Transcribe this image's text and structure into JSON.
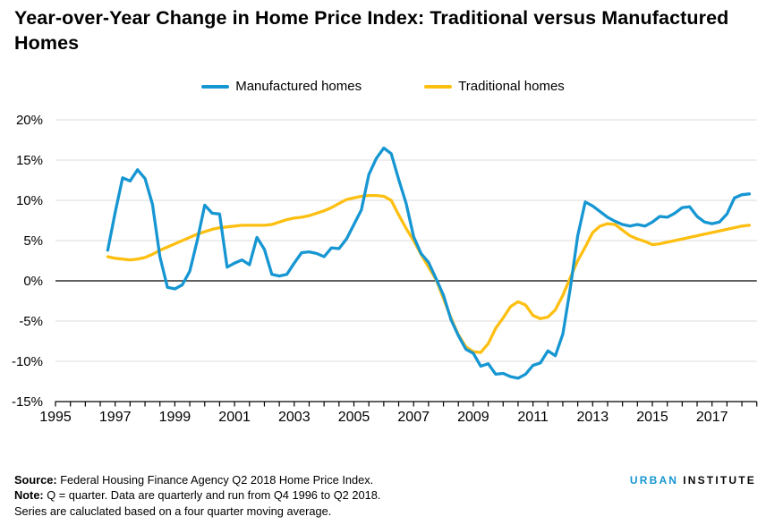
{
  "title": "Year-over-Year Change in Home Price Index: Traditional versus Manufactured Homes",
  "colors": {
    "background": "#ffffff",
    "manufactured_line": "#1696d2",
    "traditional_line": "#fdbf11",
    "gridline": "#dcdbdb",
    "zero_line": "#000000",
    "axis_line": "#000000",
    "text": "#000000"
  },
  "chart_data": {
    "type": "line",
    "title": "Year-over-Year Change in Home Price Index: Traditional versus Manufactured Homes",
    "xlabel": "",
    "ylabel": "",
    "grid": "horizontal",
    "legend_position": "top-center",
    "xlim": [
      1995,
      2018.5
    ],
    "ylim": [
      -15,
      20
    ],
    "x_start_year": 1996.75,
    "x_step_years": 0.25,
    "x_coverage": "Q4 1996 to Q2 2018, quarterly",
    "minor_x_tick_step": 0.5,
    "y_ticks": [
      {
        "label": "20%",
        "value": 20
      },
      {
        "label": "15%",
        "value": 15
      },
      {
        "label": "10%",
        "value": 10
      },
      {
        "label": "5%",
        "value": 5
      },
      {
        "label": "0%",
        "value": 0
      },
      {
        "label": "-5%",
        "value": -5
      },
      {
        "label": "-10%",
        "value": -10
      },
      {
        "label": "-15%",
        "value": -15
      }
    ],
    "x_ticks": [
      {
        "label": "1995",
        "year": 1995
      },
      {
        "label": "1997",
        "year": 1997
      },
      {
        "label": "1999",
        "year": 1999
      },
      {
        "label": "2001",
        "year": 2001
      },
      {
        "label": "2003",
        "year": 2003
      },
      {
        "label": "2005",
        "year": 2005
      },
      {
        "label": "2007",
        "year": 2007
      },
      {
        "label": "2009",
        "year": 2009
      },
      {
        "label": "2011",
        "year": 2011
      },
      {
        "label": "2013",
        "year": 2013
      },
      {
        "label": "2015",
        "year": 2015
      },
      {
        "label": "2017",
        "year": 2017
      }
    ],
    "series": [
      {
        "name": "Manufactured homes",
        "color": "#1696d2",
        "values": [
          3.8,
          8.5,
          12.8,
          12.4,
          13.8,
          12.7,
          9.5,
          3.0,
          -0.8,
          -1.0,
          -0.5,
          1.2,
          5.0,
          9.4,
          8.4,
          8.3,
          1.7,
          2.2,
          2.6,
          2.0,
          5.4,
          3.9,
          0.8,
          0.6,
          0.8,
          2.2,
          3.5,
          3.6,
          3.4,
          3.0,
          4.1,
          4.0,
          5.2,
          7.0,
          8.8,
          13.2,
          15.2,
          16.5,
          15.8,
          12.6,
          9.6,
          5.5,
          3.4,
          2.3,
          0.3,
          -1.8,
          -4.8,
          -6.8,
          -8.5,
          -9.0,
          -10.6,
          -10.3,
          -11.6,
          -11.5,
          -11.9,
          -12.1,
          -11.6,
          -10.5,
          -10.2,
          -8.7,
          -9.3,
          -6.6,
          -0.9,
          5.6,
          9.8,
          9.3,
          8.6,
          7.9,
          7.4,
          7.0,
          6.8,
          7.0,
          6.8,
          7.3,
          8.0,
          7.9,
          8.4,
          9.1,
          9.2,
          8.0,
          7.3,
          7.1,
          7.3,
          8.3,
          10.3,
          10.7,
          10.8
        ]
      },
      {
        "name": "Traditional homes",
        "color": "#fdbf11",
        "values": [
          3.0,
          2.8,
          2.7,
          2.6,
          2.7,
          2.9,
          3.3,
          3.8,
          4.2,
          4.6,
          5.0,
          5.4,
          5.8,
          6.1,
          6.4,
          6.6,
          6.7,
          6.8,
          6.9,
          6.9,
          6.9,
          6.9,
          7.0,
          7.3,
          7.6,
          7.8,
          7.9,
          8.1,
          8.4,
          8.7,
          9.1,
          9.6,
          10.1,
          10.3,
          10.5,
          10.6,
          10.6,
          10.5,
          10.0,
          8.2,
          6.5,
          5.0,
          3.3,
          1.7,
          0.2,
          -2.2,
          -4.6,
          -6.7,
          -8.2,
          -8.8,
          -8.9,
          -7.8,
          -5.9,
          -4.6,
          -3.2,
          -2.6,
          -3.0,
          -4.3,
          -4.7,
          -4.5,
          -3.6,
          -1.8,
          0.4,
          2.5,
          4.2,
          6.0,
          6.8,
          7.1,
          7.0,
          6.3,
          5.6,
          5.2,
          4.9,
          4.5,
          4.6,
          4.8,
          5.0,
          5.2,
          5.4,
          5.6,
          5.8,
          6.0,
          6.2,
          6.4,
          6.6,
          6.8,
          6.9
        ]
      }
    ]
  },
  "footer": {
    "source_label": "Source:",
    "source_text": " Federal Housing Finance Agency Q2 2018 Home Price Index.",
    "note_label": "Note:",
    "note_text": " Q = quarter. Data are quarterly and run from Q4 1996 to Q2 2018.",
    "note_line2": "Series are caluclated based on a four quarter moving average."
  },
  "logo": {
    "part1": "URBAN",
    "part2": "INSTITUTE"
  }
}
